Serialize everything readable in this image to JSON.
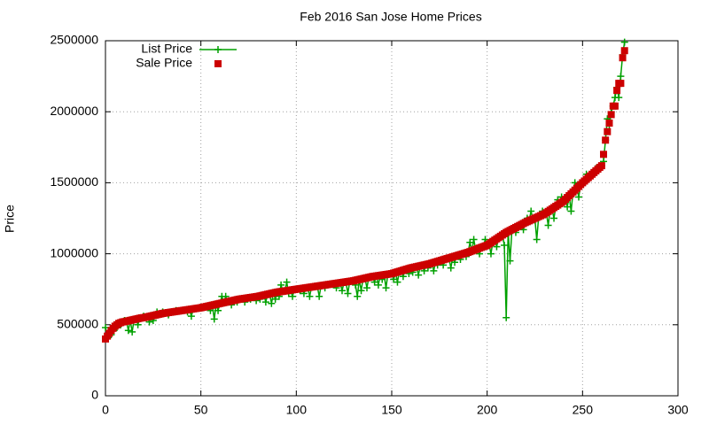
{
  "chart_data": {
    "type": "line",
    "title": "Feb 2016 San Jose Home Prices",
    "y_label": "Price",
    "xlim": [
      0,
      300
    ],
    "xticks": [
      0,
      50,
      100,
      150,
      200,
      250,
      300
    ],
    "ylim": [
      0,
      2500000
    ],
    "yticks": [
      0,
      500000,
      1000000,
      1500000,
      2000000,
      2500000
    ],
    "grid": true,
    "legend": "top-left",
    "x": [
      0,
      1,
      2,
      3,
      4,
      5,
      6,
      7,
      8,
      9,
      10,
      11,
      12,
      13,
      14,
      15,
      16,
      17,
      18,
      19,
      20,
      21,
      22,
      23,
      24,
      25,
      26,
      27,
      28,
      29,
      30,
      31,
      32,
      33,
      34,
      35,
      36,
      37,
      38,
      39,
      40,
      41,
      42,
      43,
      44,
      45,
      46,
      47,
      48,
      49,
      50,
      51,
      52,
      53,
      54,
      55,
      56,
      57,
      58,
      59,
      60,
      61,
      62,
      63,
      64,
      65,
      66,
      67,
      68,
      69,
      70,
      71,
      72,
      73,
      74,
      75,
      76,
      77,
      78,
      79,
      80,
      81,
      82,
      83,
      84,
      85,
      86,
      87,
      88,
      89,
      90,
      91,
      92,
      93,
      94,
      95,
      96,
      97,
      98,
      99,
      100,
      101,
      102,
      103,
      104,
      105,
      106,
      107,
      108,
      109,
      110,
      111,
      112,
      113,
      114,
      115,
      116,
      117,
      118,
      119,
      120,
      121,
      122,
      123,
      124,
      125,
      126,
      127,
      128,
      129,
      130,
      131,
      132,
      133,
      134,
      135,
      136,
      137,
      138,
      139,
      140,
      141,
      142,
      143,
      144,
      145,
      146,
      147,
      148,
      149,
      150,
      151,
      152,
      153,
      154,
      155,
      156,
      157,
      158,
      159,
      160,
      161,
      162,
      163,
      164,
      165,
      166,
      167,
      168,
      169,
      170,
      171,
      172,
      173,
      174,
      175,
      176,
      177,
      178,
      179,
      180,
      181,
      182,
      183,
      184,
      185,
      186,
      187,
      188,
      189,
      190,
      191,
      192,
      193,
      194,
      195,
      196,
      197,
      198,
      199,
      200,
      201,
      202,
      203,
      204,
      205,
      206,
      207,
      208,
      209,
      210,
      211,
      212,
      213,
      214,
      215,
      216,
      217,
      218,
      219,
      220,
      221,
      222,
      223,
      224,
      225,
      226,
      227,
      228,
      229,
      230,
      231,
      232,
      233,
      234,
      235,
      236,
      237,
      238,
      239,
      240,
      241,
      242,
      243,
      244,
      245,
      246,
      247,
      248,
      249,
      250,
      251,
      252,
      253,
      254,
      255,
      256,
      257,
      258,
      259,
      260,
      261,
      262,
      263,
      264,
      265,
      266,
      267,
      268,
      269,
      270,
      271,
      272
    ],
    "series": [
      {
        "name": "List Price",
        "color": "#00a000",
        "style": "linespoints",
        "values": [
          480000,
          420000,
          440000,
          430000,
          470000,
          490000,
          480000,
          510000,
          500000,
          520000,
          530000,
          525000,
          460000,
          531000,
          450000,
          537000,
          540000,
          500000,
          546000,
          549000,
          560000,
          553000,
          556000,
          520000,
          562000,
          530000,
          568000,
          590000,
          574000,
          577000,
          590000,
          582000,
          584000,
          570000,
          588000,
          590000,
          592000,
          600000,
          596000,
          598000,
          600000,
          602000,
          604000,
          590000,
          608000,
          560000,
          612000,
          614000,
          616000,
          618000,
          620000,
          623000,
          626000,
          629000,
          632000,
          600000,
          638000,
          540000,
          644000,
          600000,
          650000,
          700000,
          656000,
          700000,
          662000,
          665000,
          640000,
          671000,
          674000,
          660000,
          680000,
          682000,
          684000,
          660000,
          688000,
          690000,
          680000,
          694000,
          696000,
          670000,
          700000,
          680000,
          706000,
          709000,
          660000,
          715000,
          718000,
          650000,
          724000,
          680000,
          730000,
          700000,
          780000,
          736000,
          738000,
          800000,
          720000,
          744000,
          700000,
          748000,
          750000,
          752000,
          740000,
          756000,
          720000,
          760000,
          762000,
          700000,
          766000,
          768000,
          770000,
          772000,
          700000,
          776000,
          778000,
          760000,
          782000,
          784000,
          786000,
          788000,
          790000,
          760000,
          794000,
          796000,
          740000,
          800000,
          802000,
          720000,
          806000,
          808000,
          810000,
          780000,
          700000,
          819000,
          740000,
          825000,
          828000,
          760000,
          834000,
          837000,
          840000,
          800000,
          844000,
          780000,
          848000,
          820000,
          852000,
          760000,
          856000,
          858000,
          860000,
          820000,
          868000,
          800000,
          876000,
          880000,
          840000,
          888000,
          892000,
          860000,
          900000,
          870000,
          906000,
          909000,
          850000,
          915000,
          918000,
          880000,
          924000,
          900000,
          930000,
          934000,
          880000,
          942000,
          920000,
          950000,
          954000,
          920000,
          962000,
          966000,
          970000,
          900000,
          978000,
          940000,
          986000,
          990000,
          960000,
          998000,
          1002000,
          980000,
          1010000,
          1080000,
          1020000,
          1100000,
          1030000,
          1035000,
          1000000,
          1045000,
          1050000,
          1100000,
          1060000,
          1069000,
          1000000,
          1087000,
          1096000,
          1050000,
          1114000,
          1123000,
          1132000,
          1060000,
          550000,
          1157000,
          950000,
          1171000,
          1178000,
          1150000,
          1192000,
          1199000,
          1206000,
          1170000,
          1220000,
          1250000,
          1232000,
          1300000,
          1244000,
          1250000,
          1100000,
          1262000,
          1268000,
          1300000,
          1280000,
          1289000,
          1200000,
          1307000,
          1316000,
          1250000,
          1334000,
          1380000,
          1352000,
          1400000,
          1370000,
          1383000,
          1330000,
          1409000,
          1300000,
          1435000,
          1500000,
          1461000,
          1400000,
          1487000,
          1500000,
          1512000,
          1560000,
          1536000,
          1548000,
          1560000,
          1572000,
          1600000,
          1596000,
          1608000,
          1620000,
          1650000,
          1800000,
          1950000,
          1900000,
          2000000,
          2040000,
          2100000,
          2170000,
          2100000,
          2250000,
          2400000,
          2490000
        ]
      },
      {
        "name": "Sale Price",
        "color": "#cc0000",
        "style": "points",
        "values": [
          400000,
          420000,
          440000,
          460000,
          475000,
          490000,
          500000,
          510000,
          515000,
          520000,
          522000,
          525000,
          528000,
          531000,
          534000,
          537000,
          540000,
          543000,
          546000,
          549000,
          550000,
          553000,
          556000,
          559000,
          562000,
          565000,
          568000,
          571000,
          574000,
          577000,
          580000,
          582000,
          584000,
          586000,
          588000,
          590000,
          592000,
          594000,
          596000,
          598000,
          600000,
          602000,
          604000,
          606000,
          608000,
          610000,
          612000,
          614000,
          616000,
          618000,
          620000,
          623000,
          626000,
          629000,
          632000,
          635000,
          638000,
          641000,
          644000,
          647000,
          650000,
          653000,
          656000,
          659000,
          662000,
          665000,
          668000,
          671000,
          674000,
          677000,
          680000,
          682000,
          684000,
          686000,
          688000,
          690000,
          692000,
          694000,
          696000,
          698000,
          700000,
          703000,
          706000,
          709000,
          712000,
          715000,
          718000,
          721000,
          724000,
          727000,
          730000,
          732000,
          734000,
          736000,
          738000,
          740000,
          742000,
          744000,
          746000,
          748000,
          750000,
          752000,
          754000,
          756000,
          758000,
          760000,
          762000,
          764000,
          766000,
          768000,
          770000,
          772000,
          774000,
          776000,
          778000,
          780000,
          782000,
          784000,
          786000,
          788000,
          790000,
          792000,
          794000,
          796000,
          798000,
          800000,
          802000,
          804000,
          806000,
          808000,
          810000,
          813000,
          816000,
          819000,
          822000,
          825000,
          828000,
          831000,
          834000,
          837000,
          840000,
          842000,
          844000,
          846000,
          848000,
          850000,
          852000,
          854000,
          856000,
          858000,
          860000,
          864000,
          868000,
          872000,
          876000,
          880000,
          884000,
          888000,
          892000,
          896000,
          900000,
          903000,
          906000,
          909000,
          912000,
          915000,
          918000,
          921000,
          924000,
          927000,
          930000,
          934000,
          938000,
          942000,
          946000,
          950000,
          954000,
          958000,
          962000,
          966000,
          970000,
          974000,
          978000,
          982000,
          986000,
          990000,
          994000,
          998000,
          1002000,
          1006000,
          1010000,
          1015000,
          1020000,
          1025000,
          1030000,
          1035000,
          1040000,
          1045000,
          1050000,
          1055000,
          1060000,
          1069000,
          1078000,
          1087000,
          1096000,
          1105000,
          1114000,
          1123000,
          1132000,
          1141000,
          1150000,
          1157000,
          1164000,
          1171000,
          1178000,
          1185000,
          1192000,
          1199000,
          1206000,
          1213000,
          1220000,
          1226000,
          1232000,
          1238000,
          1244000,
          1250000,
          1256000,
          1262000,
          1268000,
          1274000,
          1280000,
          1289000,
          1298000,
          1307000,
          1316000,
          1325000,
          1334000,
          1343000,
          1352000,
          1361000,
          1370000,
          1383000,
          1396000,
          1409000,
          1422000,
          1435000,
          1448000,
          1461000,
          1474000,
          1487000,
          1500000,
          1512000,
          1524000,
          1536000,
          1548000,
          1560000,
          1572000,
          1584000,
          1596000,
          1608000,
          1620000,
          1700000,
          1800000,
          1860000,
          1920000,
          1980000,
          2040000,
          2040000,
          2150000,
          2200000,
          2200000,
          2380000,
          2430000
        ]
      }
    ]
  }
}
